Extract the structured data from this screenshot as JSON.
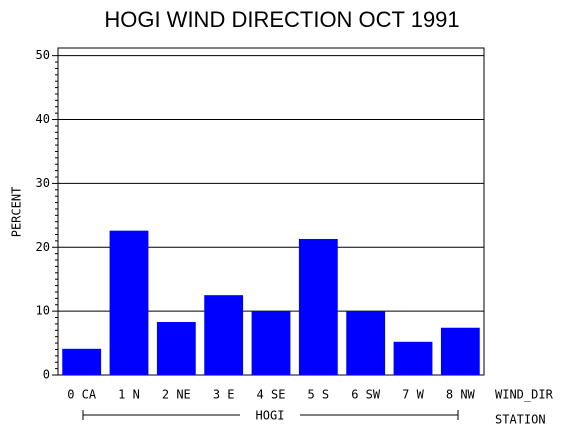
{
  "chart_data": {
    "type": "bar",
    "title": "HOGI WIND DIRECTION OCT 1991",
    "y_label": "PERCENT",
    "x_label": "WIND_DIR",
    "group_label": "HOGI",
    "group_axis_label": "STATION",
    "categories": [
      "0 CA",
      "1 N",
      "2 NE",
      "3 E",
      "4 SE",
      "5 S",
      "6 SW",
      "7 W",
      "8 NW"
    ],
    "values": [
      4.1,
      22.6,
      8.3,
      12.5,
      10.0,
      21.3,
      10.0,
      5.2,
      7.4
    ],
    "color": "#0000ff",
    "ylim": [
      0,
      51.2
    ],
    "yticks": [
      0,
      10,
      20,
      30,
      40,
      50
    ],
    "grid": true
  }
}
